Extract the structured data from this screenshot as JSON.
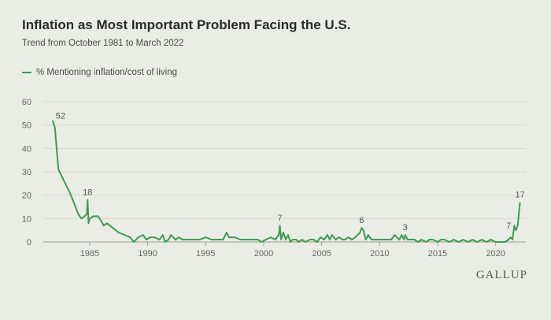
{
  "header": {
    "title": "Inflation as Most Important Problem Facing the U.S.",
    "subtitle": "Trend from October 1981 to March 2022"
  },
  "brand": "GALLUP",
  "colors": {
    "line": "#3f9a52",
    "background": "#eaede5"
  },
  "chart_data": {
    "type": "line",
    "legend_placement": "top-left",
    "grid": "horizontal",
    "xlim": [
      1981,
      2022.6
    ],
    "ylim": [
      0,
      60
    ],
    "x_ticks": [
      1985,
      1990,
      1995,
      2000,
      2005,
      2010,
      2015,
      2020
    ],
    "y_ticks": [
      0,
      10,
      20,
      30,
      40,
      50,
      60
    ],
    "series": [
      {
        "name": "% Mentioning inflation/cost of living",
        "color": "#3f9a52",
        "points": [
          [
            1981.8,
            52
          ],
          [
            1982.0,
            49
          ],
          [
            1982.3,
            31
          ],
          [
            1982.8,
            26
          ],
          [
            1983.3,
            21
          ],
          [
            1983.7,
            16
          ],
          [
            1984.0,
            12
          ],
          [
            1984.3,
            10
          ],
          [
            1984.55,
            11
          ],
          [
            1984.75,
            12
          ],
          [
            1984.82,
            18
          ],
          [
            1984.9,
            8
          ],
          [
            1985.0,
            10
          ],
          [
            1985.3,
            11
          ],
          [
            1985.7,
            11
          ],
          [
            1986.0,
            9
          ],
          [
            1986.2,
            7
          ],
          [
            1986.5,
            8
          ],
          [
            1987.0,
            6
          ],
          [
            1987.5,
            4
          ],
          [
            1988.0,
            3
          ],
          [
            1988.5,
            2
          ],
          [
            1988.8,
            0
          ],
          [
            1989.2,
            2
          ],
          [
            1989.6,
            3
          ],
          [
            1989.9,
            1
          ],
          [
            1990.2,
            2
          ],
          [
            1990.6,
            2
          ],
          [
            1991.0,
            1
          ],
          [
            1991.3,
            3
          ],
          [
            1991.5,
            0
          ],
          [
            1991.8,
            1
          ],
          [
            1992.0,
            3
          ],
          [
            1992.4,
            1
          ],
          [
            1992.7,
            2
          ],
          [
            1993.0,
            1
          ],
          [
            1993.5,
            1
          ],
          [
            1994.0,
            1
          ],
          [
            1994.5,
            1
          ],
          [
            1995.0,
            2
          ],
          [
            1995.5,
            1
          ],
          [
            1996.0,
            1
          ],
          [
            1996.5,
            1
          ],
          [
            1996.8,
            4
          ],
          [
            1997.0,
            2
          ],
          [
            1997.5,
            2
          ],
          [
            1998.0,
            1
          ],
          [
            1998.5,
            1
          ],
          [
            1999.0,
            1
          ],
          [
            1999.5,
            1
          ],
          [
            1999.8,
            0
          ],
          [
            2000.2,
            1
          ],
          [
            2000.6,
            2
          ],
          [
            2001.0,
            1
          ],
          [
            2001.3,
            3
          ],
          [
            2001.4,
            7
          ],
          [
            2001.5,
            1
          ],
          [
            2001.7,
            4
          ],
          [
            2001.9,
            1
          ],
          [
            2002.1,
            3
          ],
          [
            2002.3,
            0
          ],
          [
            2002.5,
            1
          ],
          [
            2002.8,
            1
          ],
          [
            2003.0,
            0
          ],
          [
            2003.3,
            1
          ],
          [
            2003.6,
            0
          ],
          [
            2004.0,
            1
          ],
          [
            2004.3,
            1
          ],
          [
            2004.6,
            0
          ],
          [
            2004.9,
            2
          ],
          [
            2005.2,
            1
          ],
          [
            2005.5,
            3
          ],
          [
            2005.7,
            1
          ],
          [
            2005.9,
            3
          ],
          [
            2006.2,
            1
          ],
          [
            2006.5,
            2
          ],
          [
            2006.8,
            1
          ],
          [
            2007.0,
            1
          ],
          [
            2007.3,
            2
          ],
          [
            2007.6,
            1
          ],
          [
            2007.9,
            2
          ],
          [
            2008.1,
            3
          ],
          [
            2008.3,
            4
          ],
          [
            2008.45,
            6
          ],
          [
            2008.6,
            5
          ],
          [
            2008.8,
            1
          ],
          [
            2009.0,
            3
          ],
          [
            2009.3,
            1
          ],
          [
            2009.6,
            1
          ],
          [
            2010.0,
            1
          ],
          [
            2010.5,
            1
          ],
          [
            2011.0,
            1
          ],
          [
            2011.3,
            3
          ],
          [
            2011.5,
            2
          ],
          [
            2011.7,
            1
          ],
          [
            2011.9,
            3
          ],
          [
            2012.1,
            1
          ],
          [
            2012.2,
            3
          ],
          [
            2012.4,
            1
          ],
          [
            2012.6,
            1
          ],
          [
            2013.0,
            1
          ],
          [
            2013.3,
            0
          ],
          [
            2013.6,
            1
          ],
          [
            2014.0,
            0
          ],
          [
            2014.3,
            1
          ],
          [
            2014.6,
            1
          ],
          [
            2015.0,
            0
          ],
          [
            2015.3,
            1
          ],
          [
            2015.6,
            1
          ],
          [
            2016.0,
            0
          ],
          [
            2016.4,
            1
          ],
          [
            2016.8,
            0
          ],
          [
            2017.2,
            1
          ],
          [
            2017.6,
            0
          ],
          [
            2018.0,
            1
          ],
          [
            2018.4,
            0
          ],
          [
            2018.8,
            1
          ],
          [
            2019.2,
            0
          ],
          [
            2019.6,
            1
          ],
          [
            2020.0,
            0
          ],
          [
            2020.4,
            0
          ],
          [
            2020.8,
            0
          ],
          [
            2021.1,
            1
          ],
          [
            2021.3,
            2
          ],
          [
            2021.45,
            1
          ],
          [
            2021.6,
            7
          ],
          [
            2021.75,
            5
          ],
          [
            2021.9,
            7
          ],
          [
            2022.1,
            17
          ]
        ]
      }
    ],
    "annotations": [
      {
        "x": 1981.8,
        "y": 52,
        "label": "52"
      },
      {
        "x": 1984.82,
        "y": 18,
        "label": "18"
      },
      {
        "x": 2001.4,
        "y": 7,
        "label": "7"
      },
      {
        "x": 2008.45,
        "y": 6,
        "label": "6"
      },
      {
        "x": 2012.2,
        "y": 3,
        "label": "3"
      },
      {
        "x": 2021.6,
        "y": 7,
        "label": "7"
      },
      {
        "x": 2022.1,
        "y": 17,
        "label": "17"
      }
    ]
  }
}
